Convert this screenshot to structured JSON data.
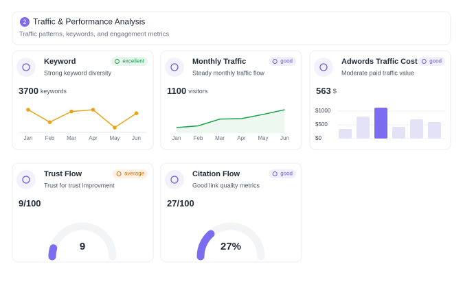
{
  "header": {
    "step": "2",
    "title": "Traffic & Performance Analysis",
    "subtitle": "Traffic patterns, keywords, and engagement metrics"
  },
  "cards": [
    {
      "title": "Keyword",
      "badge": "excellent",
      "badge_color": "#16a34a",
      "description": "Strong keyword diversity",
      "value": 3700,
      "unit": "keywords",
      "chart": {
        "type": "line",
        "categories": [
          "Jan",
          "Feb",
          "Mar",
          "Apr",
          "May",
          "Jun"
        ],
        "values": [
          62,
          55,
          61,
          62,
          52,
          60
        ],
        "color": "#e8a317",
        "area": false
      }
    },
    {
      "title": "Monthly Traffic",
      "badge": "good",
      "badge_color": "#6d5fd8",
      "description": "Steady monthly traffic flow",
      "value": 1100,
      "unit": "visitors",
      "chart": {
        "type": "line",
        "categories": [
          "Jan",
          "Feb",
          "Mar",
          "Apr",
          "May",
          "Jun"
        ],
        "values": [
          10,
          14,
          30,
          31,
          41,
          52
        ],
        "color": "#16a34a",
        "area": true
      }
    },
    {
      "title": "Adwords Traffic Cost",
      "badge": "good",
      "badge_color": "#6d5fd8",
      "description": "Moderate paid traffic value",
      "value": 563,
      "unit": "$",
      "chart": {
        "type": "bar",
        "values": [
          350,
          800,
          1125,
          425,
          700,
          600
        ],
        "colors": [
          "#e4e2f7",
          "#e4e2f7",
          "#7c6cf0",
          "#e4e2f7",
          "#e4e2f7",
          "#e4e2f7"
        ],
        "ylim": [
          0,
          1200
        ],
        "yticks": [
          {
            "value": 1000,
            "label": "$1000"
          },
          {
            "value": 500,
            "label": "$500"
          },
          {
            "value": 0,
            "label": "$0"
          }
        ],
        "grid": true
      }
    },
    {
      "title": "Trust Flow",
      "badge": "average",
      "badge_color": "#d97706",
      "description": "Trust for trust improvment",
      "value": "9/100",
      "chart": {
        "type": "gauge",
        "value": 9,
        "ylim": [
          0,
          100
        ],
        "color": "#7c6cf0"
      }
    },
    {
      "title": "Citation Flow",
      "badge": "good",
      "badge_color": "#6d5fd8",
      "description": "Good link quality metrics",
      "value": "27/100",
      "chart": {
        "type": "gauge",
        "value": 27,
        "value_labels": "27%",
        "ylim": [
          0,
          100
        ],
        "color": "#7c6cf0"
      }
    }
  ]
}
